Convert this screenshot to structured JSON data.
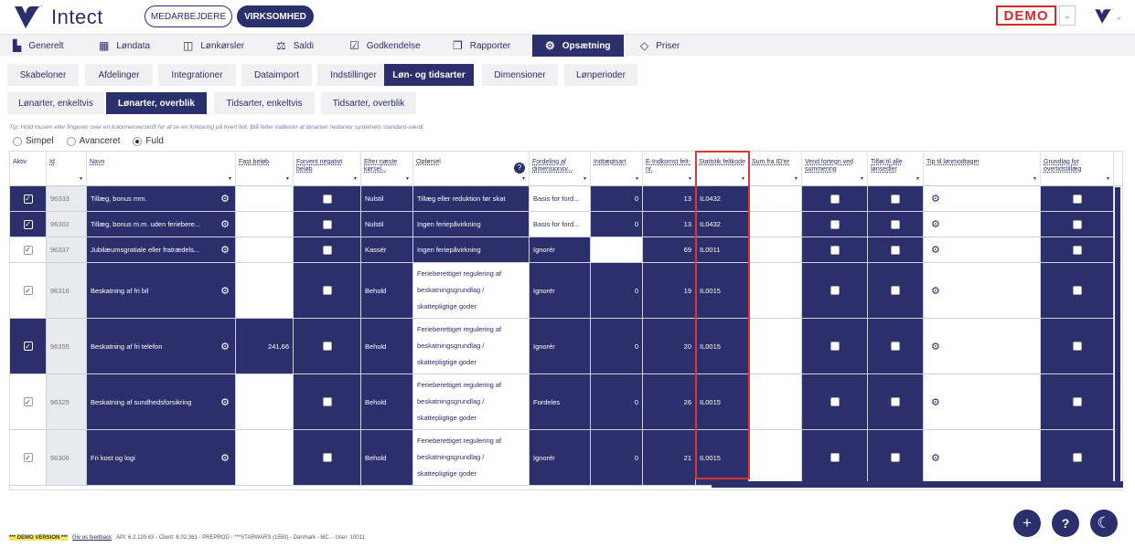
{
  "header": {
    "brand": "Intect",
    "tab_employees": "MEDARBEJDERE",
    "tab_company": "VIRKSOMHED",
    "demo_label": "DEMO"
  },
  "nav": [
    {
      "label": "Generelt",
      "icon": "bar-chart-icon"
    },
    {
      "label": "Løndata",
      "icon": "grid-icon"
    },
    {
      "label": "Lønkørsler",
      "icon": "columns-icon"
    },
    {
      "label": "Saldi",
      "icon": "scale-icon"
    },
    {
      "label": "Godkendelse",
      "icon": "checkbox-icon"
    },
    {
      "label": "Rapporter",
      "icon": "copy-icon"
    },
    {
      "label": "Opsætning",
      "icon": "gear-icon"
    },
    {
      "label": "Priser",
      "icon": "diamond-icon"
    }
  ],
  "subtabs": [
    "Skabeloner",
    "Afdelinger",
    "Integrationer",
    "Dataimport",
    "Indstillinger",
    "Løn- og tidsarter",
    "Dimensioner",
    "Lønperioder"
  ],
  "subsubtabs": [
    "Lønarter, enkeltvis",
    "Lønarter, overblik",
    "Tidsarter, enkeltvis",
    "Tidsarter, overblik"
  ],
  "tip": "Tip: Hold musen eller fingeren over en kolonneoverskrift for at se en forklaring på hvert felt. Blå felter indikerer at lønarten nedarver systemets standard-værdi.",
  "view_modes": {
    "simple": "Simpel",
    "advanced": "Avanceret",
    "full": "Fuld"
  },
  "columns": {
    "aktiv": "Aktiv",
    "id": "Id",
    "navn": "Navn",
    "fast": "Fast beløb",
    "forvent": "Forvent negativt beløb",
    "efter": "Efter næste kørsel...",
    "opforsel": "Opførsel",
    "fordeling": "Fordeling af dimensionsv...",
    "indtaegt": "Indtægtsart",
    "eindk": "E-Indkomst felt-nr.",
    "statistik": "Statistik feltkode",
    "sum": "Sum fra ID'er",
    "vend": "Vend fortegn ved summering",
    "tilfoj": "Tilføj til alle lønsedler",
    "tip": "Tip til lønmodtager",
    "grundlag": "Grundlag for overtidstillæg"
  },
  "rows": [
    {
      "id": "96333",
      "name": "Tillæg, bonus mm.",
      "fast": "",
      "efter": "Nulstil",
      "op": [
        "Tillæg eller reduktion før skat"
      ],
      "ford": "Basis for ford...",
      "indt": "0",
      "eindk": "13",
      "stat": "IL0432"
    },
    {
      "id": "96302",
      "name": "Tillæg, bonus m.m. uden feriebere...",
      "fast": "",
      "efter": "Nulstil",
      "op": [
        "Ingen feriepåvirkning"
      ],
      "ford": "Basis for ford...",
      "indt": "0",
      "eindk": "13",
      "stat": "IL0432"
    },
    {
      "id": "96337",
      "name": "Jubilæumsgratiale eller fratrædels...",
      "fast": "",
      "efter": "Kassér",
      "op": [
        "Ingen feriepåvirkning"
      ],
      "ford": "Ignorér",
      "indt": "",
      "eindk": "69",
      "stat": "IL0011"
    },
    {
      "id": "96316",
      "name": "Beskatning af fri bil",
      "fast": "",
      "efter": "Behold",
      "op": [
        "Ferieberettiget regulering af",
        "beskatningsgrundlag /",
        "skattepligtige goder"
      ],
      "ford": "Ignorér",
      "indt": "0",
      "eindk": "19",
      "stat": "IL0015"
    },
    {
      "id": "96355",
      "name": "Beskatning af fri telefon",
      "fast": "241,66",
      "efter": "Behold",
      "op": [
        "Ferieberettiget regulering af",
        "beskatningsgrundlag /",
        "skattepligtige goder"
      ],
      "ford": "Ignorér",
      "indt": "0",
      "eindk": "20",
      "stat": "IL0015"
    },
    {
      "id": "96325",
      "name": "Beskatning af sundhedsforsikring",
      "fast": "",
      "efter": "Behold",
      "op": [
        "Ferieberettiget regulering af",
        "beskatningsgrundlag /",
        "skattepligtige goder"
      ],
      "ford": "Fordeles",
      "indt": "0",
      "eindk": "26",
      "stat": "IL0015"
    },
    {
      "id": "96306",
      "name": "Fri kost og logi",
      "fast": "",
      "efter": "Behold",
      "op": [
        "Ferieberettiget regulering af",
        "beskatningsgrundlag /",
        "skattepligtige goder"
      ],
      "ford": "Ignorér",
      "indt": "0",
      "eindk": "21",
      "stat": "IL0015"
    }
  ],
  "footer": {
    "demo_version": "*** DEMO VERSION ***",
    "feedback": "Giv os feedback",
    "info": "API: 6.2.130.63 - Client: 6.02.361 - PREPROD - ***STARWARS (1553) - Danmark - MC. - User: 10011"
  },
  "colors": {
    "primary": "#2b2f6b",
    "highlight": "#d9383a",
    "demo": "#d42a2a"
  }
}
